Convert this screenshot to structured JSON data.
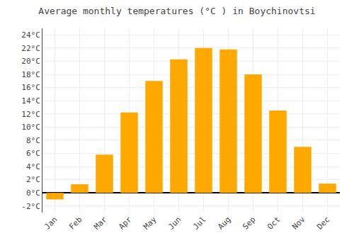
{
  "chart_data": {
    "type": "bar",
    "title": "Average monthly temperatures (°C ) in Boychinovtsi",
    "categories": [
      "Jan",
      "Feb",
      "Mar",
      "Apr",
      "May",
      "Jun",
      "Jul",
      "Aug",
      "Sep",
      "Oct",
      "Nov",
      "Dec"
    ],
    "values": [
      -1.0,
      1.3,
      5.8,
      12.2,
      17.0,
      20.3,
      22.0,
      21.8,
      18.0,
      12.5,
      7.0,
      1.4
    ],
    "color": "#FFA800",
    "ylim": [
      -3,
      25
    ],
    "yticks": [
      {
        "value": -2,
        "label": "-2°C"
      },
      {
        "value": 0,
        "label": "0°C"
      },
      {
        "value": 2,
        "label": "2°C"
      },
      {
        "value": 4,
        "label": "4°C"
      },
      {
        "value": 6,
        "label": "6°C"
      },
      {
        "value": 8,
        "label": "8°C"
      },
      {
        "value": 10,
        "label": "10°C"
      },
      {
        "value": 12,
        "label": "12°C"
      },
      {
        "value": 14,
        "label": "14°C"
      },
      {
        "value": 16,
        "label": "16°C"
      },
      {
        "value": 18,
        "label": "18°C"
      },
      {
        "value": 20,
        "label": "20°C"
      },
      {
        "value": 22,
        "label": "22°C"
      },
      {
        "value": 24,
        "label": "24°C"
      }
    ],
    "grid": true
  }
}
